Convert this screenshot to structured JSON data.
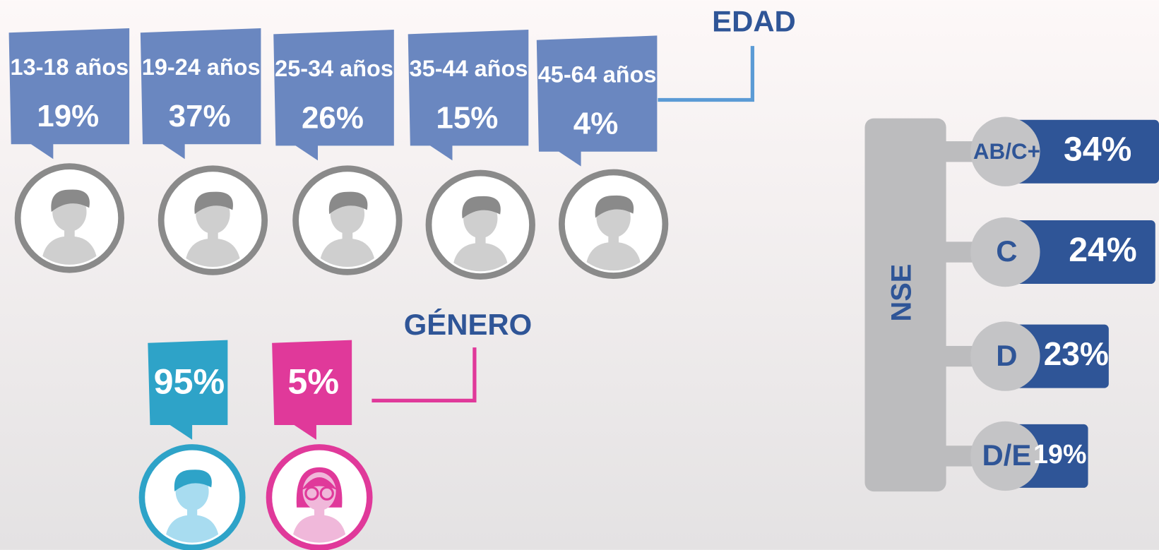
{
  "edad": {
    "title": "EDAD",
    "groups": [
      {
        "label": "13-18 años",
        "value": "19%"
      },
      {
        "label": "19-24 años",
        "value": "37%"
      },
      {
        "label": "25-34 años",
        "value": "26%"
      },
      {
        "label": "35-44 años",
        "value": "15%"
      },
      {
        "label": "45-64 años",
        "value": "4%"
      }
    ]
  },
  "genero": {
    "title": "GÉNERO",
    "groups": [
      {
        "value": "95%"
      },
      {
        "value": "5%"
      }
    ]
  },
  "nse": {
    "title": "NSE",
    "levels": [
      {
        "label": "AB/C+",
        "value": "34%"
      },
      {
        "label": "C",
        "value": "24%"
      },
      {
        "label": "D",
        "value": "23%"
      },
      {
        "label": "D/E",
        "value": "19%"
      }
    ]
  }
}
